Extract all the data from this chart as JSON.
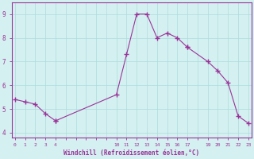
{
  "x": [
    0,
    1,
    2,
    3,
    4,
    10,
    11,
    12,
    13,
    14,
    15,
    16,
    17,
    19,
    20,
    21,
    22,
    23
  ],
  "y": [
    5.4,
    5.3,
    5.2,
    4.8,
    4.5,
    5.6,
    7.3,
    9.0,
    9.0,
    8.0,
    8.2,
    8.0,
    7.6,
    7.0,
    6.6,
    6.1,
    4.7,
    4.4
  ],
  "segments": [
    {
      "x": [
        0,
        1,
        2,
        3,
        4
      ],
      "y": [
        5.4,
        5.3,
        5.2,
        4.8,
        4.5
      ]
    },
    {
      "x": [
        4,
        10,
        11,
        12,
        13,
        14,
        15,
        16,
        17
      ],
      "y": [
        4.5,
        5.6,
        7.3,
        9.0,
        9.0,
        8.0,
        8.2,
        8.0,
        7.6
      ]
    },
    {
      "x": [
        17,
        19,
        20,
        21,
        22,
        23
      ],
      "y": [
        7.6,
        7.0,
        6.6,
        6.1,
        4.7,
        4.4
      ]
    }
  ],
  "xticks": [
    0,
    1,
    2,
    3,
    4,
    10,
    11,
    12,
    13,
    14,
    15,
    16,
    17,
    19,
    20,
    21,
    22,
    23
  ],
  "xtick_labels": [
    "0",
    "1",
    "2",
    "3",
    "4",
    "10",
    "11",
    "12",
    "13",
    "14",
    "15",
    "16",
    "17",
    "19",
    "20",
    "21",
    "22",
    "23"
  ],
  "yticks": [
    4,
    5,
    6,
    7,
    8,
    9
  ],
  "ylim": [
    3.8,
    9.5
  ],
  "xlim": [
    -0.3,
    23.3
  ],
  "xlabel": "Windchill (Refroidissement éolien,°C)",
  "line_color": "#993399",
  "marker": "+",
  "bg_color": "#d5f0f0",
  "grid_color": "#aadddd",
  "label_color": "#993399",
  "tick_color": "#993399",
  "spine_color": "#993399"
}
